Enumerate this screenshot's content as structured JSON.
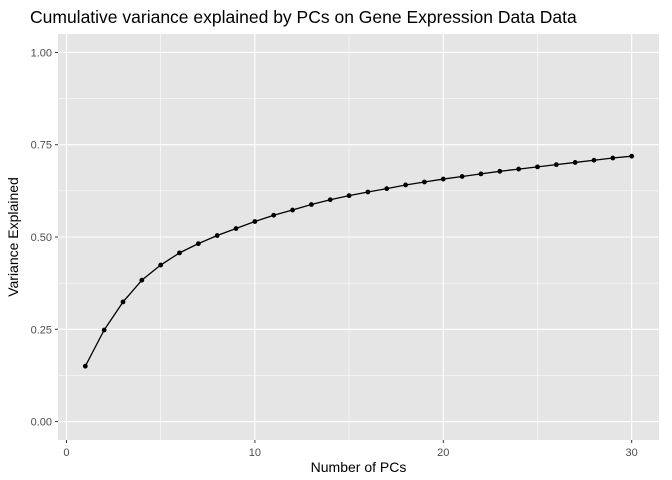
{
  "chart_data": {
    "type": "line",
    "title": "Cumulative variance explained by PCs on Gene Expression Data Data",
    "xlabel": "Number of PCs",
    "ylabel": "Variance Explained",
    "xlim": [
      -0.45,
      31.45
    ],
    "ylim": [
      -0.05,
      1.05
    ],
    "x_ticks": [
      0,
      10,
      20,
      30
    ],
    "x_tick_labels": [
      "0",
      "10",
      "20",
      "30"
    ],
    "y_ticks": [
      0,
      0.25,
      0.5,
      0.75,
      1.0
    ],
    "y_tick_labels": [
      "0.00",
      "0.25",
      "0.50",
      "0.75",
      "1.00"
    ],
    "grid": true,
    "legend": "none",
    "colors": {
      "panel_background": "#e5e5e5",
      "grid": "#ffffff",
      "line": "#000000",
      "point": "#000000"
    },
    "series": [
      {
        "x": [
          1,
          2,
          3,
          4,
          5,
          6,
          7,
          8,
          9,
          10,
          11,
          12,
          13,
          14,
          15,
          16,
          17,
          18,
          19,
          20,
          21,
          22,
          23,
          24,
          25,
          26,
          27,
          28,
          29,
          30
        ],
        "values": [
          0.15,
          0.248,
          0.324,
          0.383,
          0.424,
          0.457,
          0.482,
          0.504,
          0.523,
          0.542,
          0.559,
          0.573,
          0.588,
          0.601,
          0.612,
          0.622,
          0.631,
          0.641,
          0.649,
          0.657,
          0.664,
          0.671,
          0.678,
          0.684,
          0.69,
          0.696,
          0.702,
          0.708,
          0.714,
          0.719
        ]
      }
    ]
  }
}
